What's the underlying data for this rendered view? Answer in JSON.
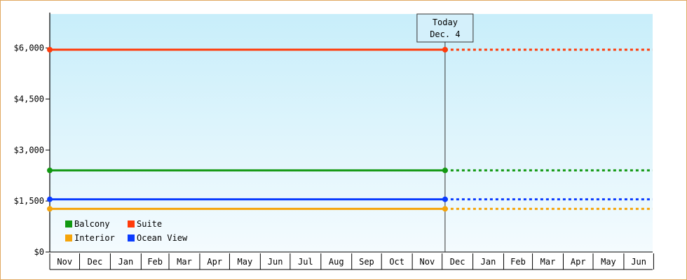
{
  "chart_data": {
    "type": "line",
    "title": "",
    "xlabel": "",
    "ylabel": "",
    "ylim": [
      0,
      7000
    ],
    "y_ticks": [
      0,
      1500,
      3000,
      4500,
      6000
    ],
    "y_tick_labels": [
      "$0",
      "$1,500",
      "$3,000",
      "$4,500",
      "$6,000"
    ],
    "x_tick_labels": [
      "Nov",
      "Dec",
      "Jan",
      "Feb",
      "Mar",
      "Apr",
      "May",
      "Jun",
      "Jul",
      "Aug",
      "Sep",
      "Oct",
      "Nov",
      "Dec",
      "Jan",
      "Feb",
      "Mar",
      "Apr",
      "May",
      "Jun"
    ],
    "x_range": [
      "2010-11-01",
      "2012-06-30"
    ],
    "today": {
      "label_line1": "Today",
      "label_line2": "Dec. 4",
      "date": "2011-12-04"
    },
    "grid": false,
    "legend_placement": "bottom-left",
    "series": [
      {
        "name": "Suite",
        "color": "#ff3b0a",
        "values": [
          {
            "x": "2010-11-01",
            "y": 5950
          },
          {
            "x": "2011-12-04",
            "y": 5950
          }
        ],
        "projection_to": "2012-06-30"
      },
      {
        "name": "Balcony",
        "color": "#119911",
        "values": [
          {
            "x": "2010-11-01",
            "y": 2400
          },
          {
            "x": "2011-12-04",
            "y": 2400
          }
        ],
        "projection_to": "2012-06-30"
      },
      {
        "name": "Ocean View",
        "color": "#0a3bff",
        "values": [
          {
            "x": "2010-11-01",
            "y": 1550
          },
          {
            "x": "2011-12-04",
            "y": 1550
          }
        ],
        "projection_to": "2012-06-30"
      },
      {
        "name": "Interior",
        "color": "#f5a40a",
        "values": [
          {
            "x": "2010-11-01",
            "y": 1270
          },
          {
            "x": "2011-12-04",
            "y": 1270
          }
        ],
        "projection_to": "2012-06-30"
      }
    ],
    "legend_rows": [
      [
        "Balcony",
        "Suite"
      ],
      [
        "Interior",
        "Ocean View"
      ]
    ]
  }
}
